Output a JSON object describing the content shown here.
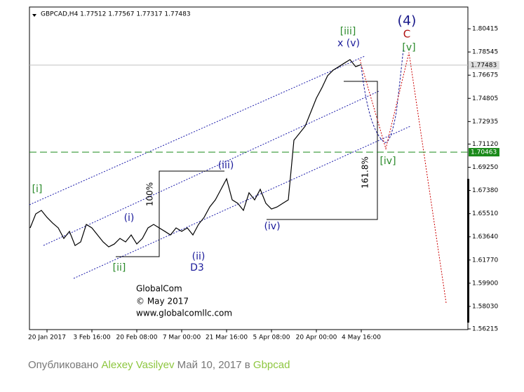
{
  "chart_data": {
    "type": "line",
    "header": "GBPCAD,H4  1.77512 1.77567 1.77317 1.77483",
    "categories": [
      null,
      null,
      null,
      "20 Jan 2017",
      null,
      null,
      null,
      null,
      null,
      null,
      null,
      "3 Feb 16:00",
      null,
      null,
      null,
      null,
      null,
      null,
      null,
      "20 Feb 08:00",
      null,
      null,
      null,
      null,
      null,
      null,
      null,
      "7 Mar 00:00",
      null,
      null,
      null,
      null,
      null,
      null,
      null,
      "21 Mar 16:00",
      null,
      null,
      null,
      null,
      null,
      null,
      null,
      "5 Apr 08:00",
      null,
      null,
      null,
      null,
      null,
      null,
      null,
      "20 Apr 00:00",
      null,
      null,
      null,
      null,
      null,
      null,
      null,
      "4 May 16:00"
    ],
    "values": [
      1.6436,
      1.6549,
      1.6577,
      1.6521,
      1.6475,
      1.6436,
      1.6351,
      1.6408,
      1.6294,
      1.6323,
      1.6464,
      1.6436,
      1.6379,
      1.6323,
      1.6283,
      1.6306,
      1.6351,
      1.6323,
      1.6379,
      1.6306,
      1.6351,
      1.6436,
      1.6464,
      1.6436,
      1.6408,
      1.6379,
      1.6436,
      1.6408,
      1.6436,
      1.6379,
      1.6464,
      1.6521,
      1.6605,
      1.6662,
      1.6747,
      1.6832,
      1.6662,
      1.6634,
      1.6577,
      1.6719,
      1.6662,
      1.6747,
      1.6634,
      1.6588,
      1.6605,
      1.6634,
      1.6662,
      1.7143,
      1.7199,
      1.7256,
      1.7369,
      1.7482,
      1.7567,
      1.7663,
      1.7708,
      1.7736,
      1.7765,
      1.7793,
      1.7736,
      1.7753
    ],
    "color": "#000000",
    "ylim": [
      1.5616,
      1.8217
    ],
    "yticks": [
      1.80415,
      1.78545,
      1.76675,
      1.74805,
      1.72935,
      {
        "value": 1.7112,
        "label": "1.71120"
      },
      {
        "value": 1.6925,
        "label": "1.69250"
      },
      {
        "value": 1.6738,
        "label": "1.67380"
      },
      {
        "value": 1.6551,
        "label": "1.65510"
      },
      {
        "value": 1.6364,
        "label": "1.63640"
      },
      {
        "value": 1.6177,
        "label": "1.61770"
      },
      {
        "value": 1.599,
        "label": "1.59900"
      },
      {
        "value": 1.5803,
        "label": "1.58030"
      },
      1.56215
    ],
    "hlines": [
      {
        "value": 1.77483,
        "color": "#c0c0c0"
      },
      {
        "value": 1.70463,
        "color": "#1a8a1a"
      }
    ],
    "annotations": [
      "[i]",
      "(i)",
      "[ii]",
      "(ii)",
      "D3",
      "100%",
      "(iii)",
      "(iv)",
      "161.8%",
      "[iii]",
      "x (v)",
      "(4)",
      "C",
      "[v]",
      "[iv]",
      "GlobalCom",
      "© May 2017",
      "www.globalcomllc.com"
    ]
  },
  "footer": {
    "prefix": "Опубликовано",
    "author": "Alexey Vasilyev",
    "date": "Май 10, 2017",
    "in": "в",
    "topic": "Gbpcad"
  }
}
